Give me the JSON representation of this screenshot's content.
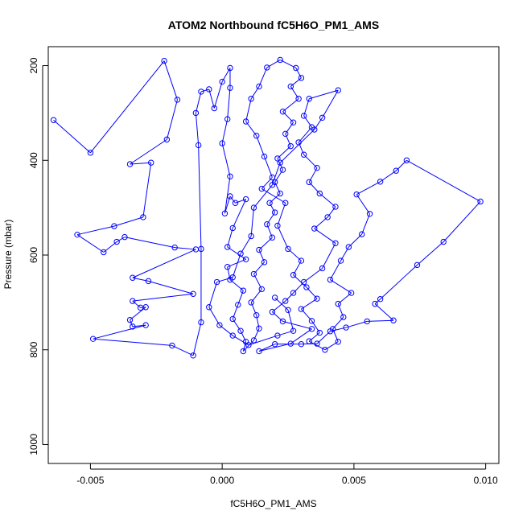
{
  "chart_data": {
    "type": "line",
    "title": "ATOM2 Northbound fC5H6O_PM1_AMS",
    "xlabel": "fC5H6O_PM1_AMS",
    "ylabel": "Pressure (mbar)",
    "xlim": [
      -0.0066,
      0.0105
    ],
    "ylim": [
      1040,
      160
    ],
    "y_reversed": true,
    "grid": false,
    "series_color": "#0000ff",
    "marker": "open-circle",
    "x_ticks": [
      -0.005,
      0.0,
      0.005,
      0.01
    ],
    "x_tick_labels": [
      "-0.005",
      "0.000",
      "0.005",
      "0.010"
    ],
    "y_ticks": [
      200,
      400,
      600,
      800,
      1000
    ],
    "y_tick_labels": [
      "200",
      "400",
      "600",
      "800",
      "1000"
    ],
    "series": [
      {
        "points": [
          [
            -0.0064,
            315
          ],
          [
            -0.005,
            384
          ],
          [
            -0.0022,
            190
          ],
          [
            -0.0017,
            272
          ],
          [
            -0.0021,
            356
          ],
          [
            -0.0035,
            408
          ],
          [
            -0.0027,
            405
          ],
          [
            -0.003,
            520
          ],
          [
            -0.0041,
            539
          ],
          [
            -0.0055,
            557
          ],
          [
            -0.0045,
            594
          ],
          [
            -0.004,
            572
          ],
          [
            -0.0037,
            562
          ],
          [
            -0.0018,
            584
          ],
          [
            -0.001,
            588
          ],
          [
            -0.0034,
            648
          ],
          [
            -0.0028,
            655
          ],
          [
            -0.0011,
            682
          ],
          [
            -0.0034,
            697
          ],
          [
            -0.0031,
            711
          ],
          [
            -0.0029,
            710
          ],
          [
            -0.0035,
            737
          ],
          [
            -0.0034,
            751
          ],
          [
            -0.0029,
            748
          ],
          [
            -0.0049,
            777
          ],
          [
            -0.0019,
            791
          ],
          [
            -0.0011,
            812
          ],
          [
            -0.0008,
            742
          ],
          [
            -0.0008,
            587
          ],
          [
            -0.0009,
            368
          ],
          [
            -0.001,
            300
          ],
          [
            -0.0008,
            255
          ],
          [
            -0.0005,
            250
          ],
          [
            -0.0003,
            290
          ],
          [
            0.0,
            234
          ],
          [
            0.0003,
            205
          ],
          [
            0.0003,
            247
          ],
          [
            0.0002,
            313
          ],
          [
            0.0,
            364
          ],
          [
            0.0003,
            434
          ],
          [
            0.0001,
            512
          ],
          [
            0.0003,
            476
          ],
          [
            0.0005,
            490
          ],
          [
            0.0009,
            482
          ],
          [
            0.0004,
            543
          ],
          [
            0.0002,
            583
          ],
          [
            0.0009,
            609
          ],
          [
            0.0002,
            625
          ],
          [
            0.0003,
            652
          ],
          [
            0.0008,
            675
          ],
          [
            0.0006,
            705
          ],
          [
            0.0004,
            735
          ],
          [
            0.0007,
            760
          ],
          [
            0.0009,
            783
          ],
          [
            0.0008,
            803
          ],
          [
            0.0012,
            780
          ],
          [
            0.0014,
            755
          ],
          [
            0.0013,
            727
          ],
          [
            0.0011,
            700
          ],
          [
            0.0015,
            672
          ],
          [
            0.0012,
            640
          ],
          [
            0.0016,
            615
          ],
          [
            0.0014,
            589
          ],
          [
            0.0019,
            563
          ],
          [
            0.0017,
            535
          ],
          [
            0.002,
            510
          ],
          [
            0.0018,
            490
          ],
          [
            0.0022,
            470
          ],
          [
            0.002,
            446
          ],
          [
            0.0023,
            420
          ],
          [
            0.0021,
            396
          ],
          [
            0.0026,
            370
          ],
          [
            0.0024,
            344
          ],
          [
            0.0027,
            320
          ],
          [
            0.0023,
            297
          ],
          [
            0.0029,
            270
          ],
          [
            0.0026,
            244
          ],
          [
            0.003,
            226
          ],
          [
            0.0028,
            205
          ],
          [
            0.0022,
            188
          ],
          [
            0.0017,
            204
          ],
          [
            0.0014,
            244
          ],
          [
            0.0011,
            270
          ],
          [
            0.0009,
            318
          ],
          [
            0.0013,
            348
          ],
          [
            0.0016,
            392
          ],
          [
            0.0019,
            436
          ],
          [
            0.0015,
            460
          ],
          [
            0.0024,
            490
          ],
          [
            0.0021,
            538
          ],
          [
            0.0025,
            587
          ],
          [
            0.003,
            612
          ],
          [
            0.0027,
            642
          ],
          [
            0.0032,
            668
          ],
          [
            0.0036,
            692
          ],
          [
            0.003,
            714
          ],
          [
            0.0034,
            739
          ],
          [
            0.0037,
            764
          ],
          [
            0.0033,
            782
          ],
          [
            0.0039,
            800
          ],
          [
            0.0044,
            783
          ],
          [
            0.0042,
            756
          ],
          [
            0.0046,
            731
          ],
          [
            0.0044,
            703
          ],
          [
            0.0049,
            680
          ],
          [
            0.0041,
            652
          ],
          [
            0.0045,
            612
          ],
          [
            0.0048,
            583
          ],
          [
            0.0053,
            556
          ],
          [
            0.0056,
            513
          ],
          [
            0.0051,
            472
          ],
          [
            0.006,
            445
          ],
          [
            0.0066,
            422
          ],
          [
            0.007,
            400
          ],
          [
            0.0098,
            487
          ],
          [
            0.0084,
            572
          ],
          [
            0.0074,
            621
          ],
          [
            0.006,
            693
          ],
          [
            0.0058,
            703
          ],
          [
            0.0065,
            738
          ],
          [
            0.0055,
            740
          ],
          [
            0.0047,
            753
          ],
          [
            0.0041,
            761
          ],
          [
            0.0036,
            787
          ],
          [
            0.003,
            788
          ],
          [
            0.002,
            788
          ],
          [
            0.0014,
            803
          ],
          [
            0.0026,
            787
          ],
          [
            0.0034,
            756
          ],
          [
            0.0023,
            740
          ],
          [
            0.0019,
            720
          ],
          [
            0.0024,
            697
          ],
          [
            0.0027,
            680
          ],
          [
            0.0031,
            657
          ],
          [
            0.0038,
            628
          ],
          [
            0.0043,
            575
          ],
          [
            0.0035,
            544
          ],
          [
            0.004,
            520
          ],
          [
            0.0043,
            498
          ],
          [
            0.0037,
            470
          ],
          [
            0.0033,
            446
          ],
          [
            0.0036,
            416
          ],
          [
            0.0031,
            388
          ],
          [
            0.0029,
            362
          ],
          [
            0.0034,
            330
          ],
          [
            0.0031,
            306
          ],
          [
            0.0033,
            270
          ],
          [
            0.0044,
            252
          ],
          [
            0.0038,
            310
          ],
          [
            0.0035,
            335
          ],
          [
            0.0022,
            405
          ],
          [
            0.0019,
            452
          ],
          [
            0.0012,
            500
          ],
          [
            0.0011,
            560
          ],
          [
            0.0007,
            597
          ],
          [
            0.0004,
            647
          ],
          [
            -0.0002,
            657
          ],
          [
            -0.0005,
            710
          ],
          [
            -0.0001,
            748
          ],
          [
            0.0004,
            770
          ],
          [
            0.001,
            790
          ],
          [
            0.0021,
            770
          ],
          [
            0.0027,
            760
          ],
          [
            0.0025,
            716
          ],
          [
            0.002,
            690
          ]
        ]
      }
    ]
  }
}
